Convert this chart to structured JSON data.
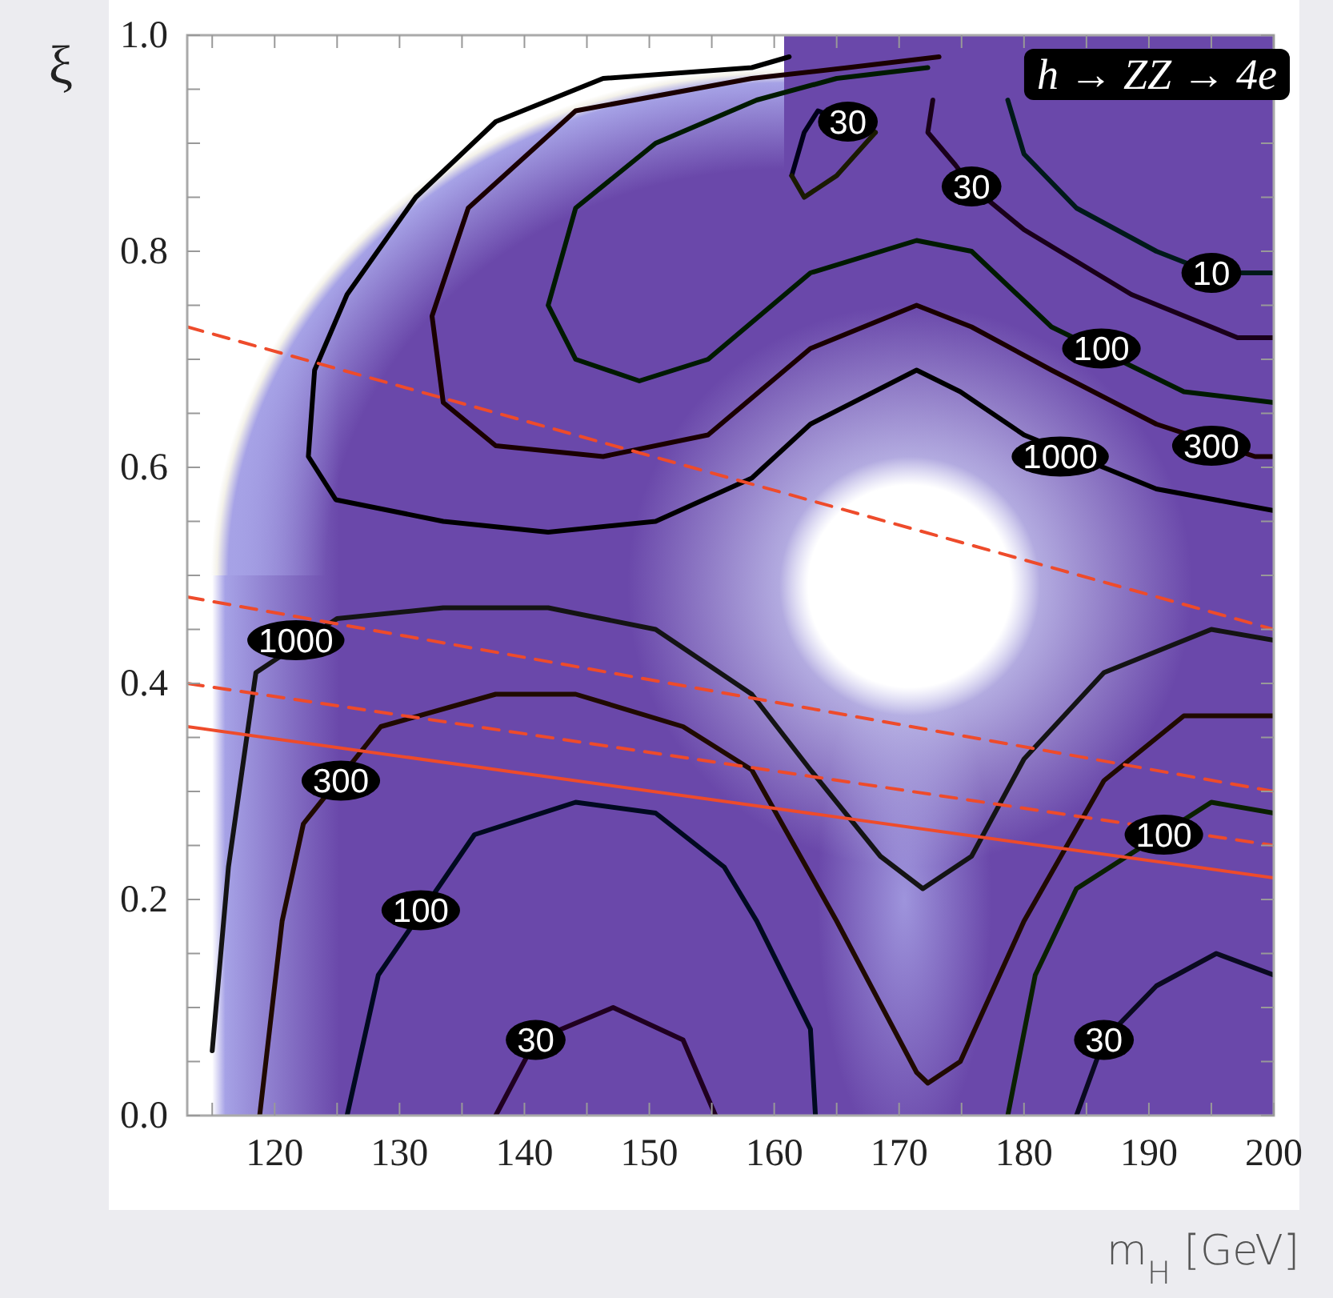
{
  "chart_data": {
    "type": "line",
    "title": "h → ZZ → 4e",
    "xlabel": "m$_{H}$ [GeV]",
    "ylabel": "ξ",
    "xlim": [
      113,
      200
    ],
    "ylim": [
      0,
      1.0
    ],
    "xticks": [
      {
        "value": 115,
        "label": null
      },
      120,
      {
        "value": 125,
        "label": null
      },
      130,
      {
        "value": 135,
        "label": null
      },
      140,
      {
        "value": 145,
        "label": null
      },
      150,
      {
        "value": 155,
        "label": null
      },
      160,
      {
        "value": 165,
        "label": null
      },
      170,
      {
        "value": 175,
        "label": null
      },
      180,
      {
        "value": 185,
        "label": null
      },
      190,
      {
        "value": 195,
        "label": null
      },
      200
    ],
    "yticks": [
      {
        "value": 0,
        "label": "0.0"
      },
      {
        "value": 0.05,
        "label": null
      },
      {
        "value": 0.1,
        "label": null
      },
      {
        "value": 0.15,
        "label": null
      },
      0.2,
      {
        "value": 0.25,
        "label": null
      },
      {
        "value": 0.3,
        "label": null
      },
      {
        "value": 0.35,
        "label": null
      },
      0.4,
      {
        "value": 0.45,
        "label": null
      },
      {
        "value": 0.5,
        "label": null
      },
      {
        "value": 0.55,
        "label": null
      },
      0.6,
      {
        "value": 0.65,
        "label": null
      },
      {
        "value": 0.7,
        "label": null
      },
      {
        "value": 0.75,
        "label": null
      },
      0.8,
      {
        "value": 0.85,
        "label": null
      },
      {
        "value": 0.9,
        "label": null
      },
      {
        "value": 0.95,
        "label": null
      },
      {
        "value": 1.0,
        "label": "1.0"
      }
    ],
    "series": [
      {
        "color": "#000000",
        "x": [
          161.2,
          158.2,
          146.3,
          137.7,
          131.3,
          125.8,
          123.2,
          122.7,
          124.9,
          133.5,
          141.9,
          150.5,
          158.2,
          162.9,
          171.4,
          174.9,
          180.0,
          190.6,
          200.0
        ],
        "values": [
          0.98,
          0.97,
          0.96,
          0.92,
          0.85,
          0.76,
          0.69,
          0.61,
          0.57,
          0.55,
          0.54,
          0.55,
          0.59,
          0.64,
          0.69,
          0.67,
          0.63,
          0.58,
          0.56
        ]
      },
      {
        "color": "#1a0000",
        "x": [
          173.2,
          165.9,
          158.2,
          144.1,
          135.5,
          132.6,
          133.5,
          137.7,
          146.3,
          154.7,
          162.9,
          171.4,
          175.8,
          182.2,
          190.6,
          198.5,
          200.0
        ],
        "values": [
          0.98,
          0.97,
          0.96,
          0.93,
          0.84,
          0.74,
          0.66,
          0.62,
          0.61,
          0.63,
          0.71,
          0.75,
          0.73,
          0.69,
          0.64,
          0.61,
          0.61
        ]
      },
      {
        "color": "#001a00",
        "x": [
          172.3,
          165.0,
          158.6,
          150.5,
          144.1,
          141.9,
          144.1,
          149.2,
          154.7,
          162.9,
          171.4,
          175.8,
          182.2,
          192.8,
          200.0
        ],
        "values": [
          0.97,
          0.96,
          0.94,
          0.9,
          0.84,
          0.75,
          0.7,
          0.68,
          0.7,
          0.78,
          0.81,
          0.8,
          0.73,
          0.67,
          0.66
        ]
      },
      {
        "color": "#00001a",
        "x": [
          161.4,
          162.4,
          163.5,
          168.1
        ],
        "values": [
          0.87,
          0.91,
          0.93,
          0.91
        ]
      },
      {
        "color": "#1a1a00",
        "x": [
          161.4,
          162.4,
          165.0,
          168.1
        ],
        "values": [
          0.87,
          0.85,
          0.87,
          0.91
        ]
      },
      {
        "color": "#1a001a",
        "x": [
          172.7,
          172.3,
          174.5,
          175.8,
          180.0,
          188.6,
          197.1,
          200.0
        ],
        "values": [
          0.94,
          0.91,
          0.88,
          0.86,
          0.82,
          0.76,
          0.72,
          0.72
        ]
      },
      {
        "color": "#001a1a",
        "x": [
          178.7,
          180.0,
          184.2,
          190.6,
          195.0,
          200.0
        ],
        "values": [
          0.94,
          0.89,
          0.84,
          0.8,
          0.78,
          0.78
        ]
      },
      {
        "color": "#141414",
        "x": [
          115.0,
          116.3,
          118.5,
          125.0,
          133.5,
          141.9,
          150.5,
          158.2,
          162.9,
          168.5,
          171.9,
          175.8,
          180.0,
          186.4,
          195.0,
          200.0
        ],
        "values": [
          0.06,
          0.23,
          0.41,
          0.46,
          0.47,
          0.47,
          0.45,
          0.39,
          0.32,
          0.24,
          0.21,
          0.24,
          0.33,
          0.41,
          0.45,
          0.44
        ]
      },
      {
        "color": "#200a00",
        "x": [
          118.8,
          120.6,
          122.3,
          128.5,
          137.7,
          144.1,
          152.7,
          158.2,
          165.0,
          171.4,
          172.3,
          174.9,
          180.0,
          186.4,
          192.8,
          200.0
        ],
        "values": [
          0,
          0.18,
          0.27,
          0.36,
          0.39,
          0.39,
          0.36,
          0.32,
          0.18,
          0.04,
          0.03,
          0.05,
          0.18,
          0.31,
          0.37,
          0.37
        ]
      },
      {
        "color": "#000a20",
        "x": [
          125.8,
          128.3,
          136.0,
          144.1,
          150.5,
          156.0,
          158.6,
          162.9,
          163.3
        ],
        "values": [
          0,
          0.13,
          0.26,
          0.29,
          0.28,
          0.23,
          0.18,
          0.08,
          0
        ]
      },
      {
        "color": "#0a2000",
        "x": [
          178.7,
          180.9,
          184.2,
          195.0,
          200.0
        ],
        "values": [
          0,
          0.13,
          0.21,
          0.29,
          0.28
        ]
      },
      {
        "color": "#200020",
        "x": [
          137.7,
          140.9,
          147.1,
          152.7,
          155.3
        ],
        "values": [
          0,
          0.07,
          0.1,
          0.07,
          0
        ]
      },
      {
        "color": "#0a0a20",
        "x": [
          184.2,
          186.4,
          190.6,
          195.4,
          200.0
        ],
        "values": [
          0,
          0.07,
          0.12,
          0.15,
          0.13
        ]
      },
      {
        "color": "#ee4b2b",
        "line_style": "dashed",
        "x": [
          113,
          200
        ],
        "values": [
          0.73,
          0.45
        ]
      },
      {
        "color": "#ee4b2b",
        "line_style": "dashed",
        "x": [
          113,
          200
        ],
        "values": [
          0.48,
          0.3
        ]
      },
      {
        "color": "#ee4b2b",
        "line_style": "dashed",
        "x": [
          113,
          200
        ],
        "values": [
          0.4,
          0.25
        ]
      },
      {
        "color": "#ee4b2b",
        "line_style": "solid",
        "x": [
          113,
          200
        ],
        "values": [
          0.36,
          0.22
        ]
      }
    ],
    "annotations": [
      {
        "text": "30",
        "x": 165.9,
        "y": 0.92
      },
      {
        "text": "30",
        "x": 175.8,
        "y": 0.86
      },
      {
        "text": "10",
        "x": 195.0,
        "y": 0.78
      },
      {
        "text": "100",
        "x": 186.2,
        "y": 0.71
      },
      {
        "text": "1000",
        "x": 182.9,
        "y": 0.61
      },
      {
        "text": "300",
        "x": 195.0,
        "y": 0.62
      },
      {
        "text": "1000",
        "x": 121.7,
        "y": 0.44
      },
      {
        "text": "300",
        "x": 125.3,
        "y": 0.31
      },
      {
        "text": "100",
        "x": 191.2,
        "y": 0.26
      },
      {
        "text": "100",
        "x": 131.7,
        "y": 0.19
      },
      {
        "text": "30",
        "x": 140.9,
        "y": 0.07
      },
      {
        "text": "30",
        "x": 186.4,
        "y": 0.07
      }
    ]
  }
}
